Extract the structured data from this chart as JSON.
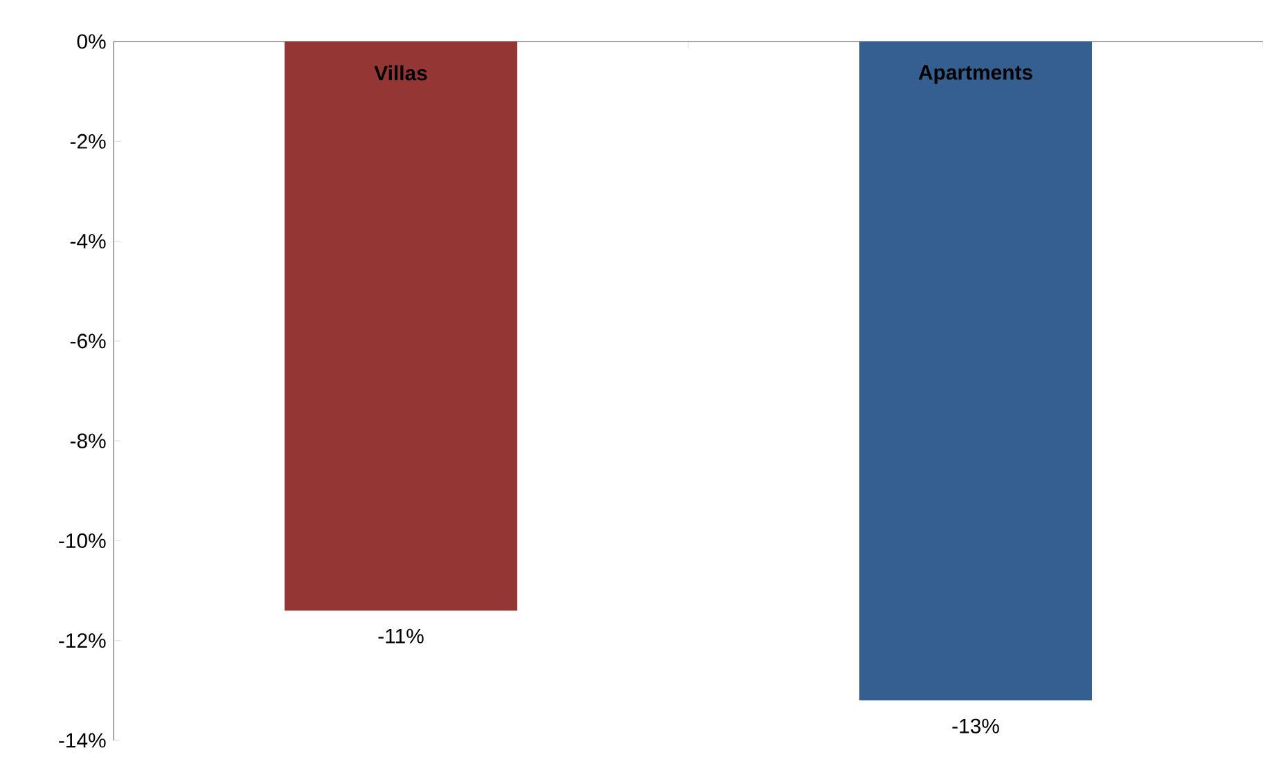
{
  "chart_data": {
    "type": "bar",
    "categories": [
      "Villas",
      "Apartments"
    ],
    "values": [
      -11.4,
      -13.2
    ],
    "colors": [
      "#943634",
      "#365f91"
    ],
    "value_labels": [
      "-11%",
      "-13%"
    ],
    "ylim": [
      -14,
      0
    ],
    "yticks": [
      {
        "value": 0,
        "label": "0%"
      },
      {
        "value": -2,
        "label": "-2%"
      },
      {
        "value": -4,
        "label": "-4%"
      },
      {
        "value": -6,
        "label": "-6%"
      },
      {
        "value": -8,
        "label": "-8%"
      },
      {
        "value": -10,
        "label": "-10%"
      },
      {
        "value": -12,
        "label": "-12%"
      },
      {
        "value": -14,
        "label": "-14%"
      }
    ],
    "grid": false
  }
}
